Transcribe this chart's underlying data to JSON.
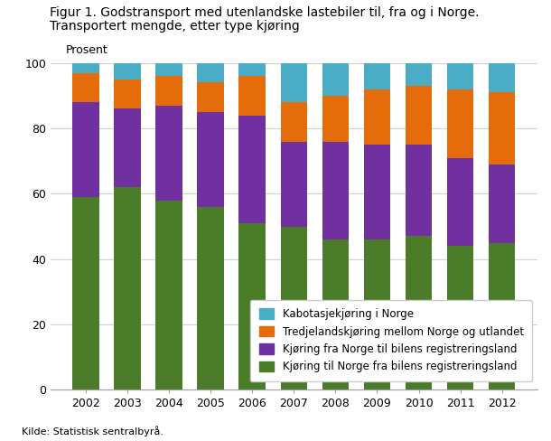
{
  "years": [
    2002,
    2003,
    2004,
    2005,
    2006,
    2007,
    2008,
    2009,
    2010,
    2011,
    2012
  ],
  "green": [
    59,
    62,
    58,
    56,
    51,
    50,
    46,
    46,
    47,
    44,
    45
  ],
  "purple": [
    29,
    24,
    29,
    29,
    33,
    26,
    30,
    29,
    28,
    27,
    24
  ],
  "orange": [
    9,
    9,
    9,
    9,
    12,
    12,
    14,
    17,
    18,
    21,
    22
  ],
  "blue": [
    3,
    5,
    4,
    6,
    4,
    12,
    10,
    8,
    7,
    8,
    9
  ],
  "colors": {
    "green": "#4a7c2a",
    "purple": "#7030a0",
    "orange": "#e46c0a",
    "blue": "#4bacc6"
  },
  "title_line1": "Figur 1. Godstransport med utenlandske lastebiler til, fra og i Norge.",
  "title_line2": "Transportert mengde, etter type kjøring",
  "ylabel": "Prosent",
  "source": "Kilde: Statistisk sentralbyrå.",
  "legend_labels": [
    "Kabotasjekjøring i Norge",
    "Tredjelandskjøring mellom Norge og utlandet",
    "Kjøring fra Norge til bilens registreringsland",
    "Kjøring til Norge fra bilens registreringsland"
  ],
  "ylim": [
    0,
    100
  ],
  "yticks": [
    0,
    20,
    40,
    60,
    80,
    100
  ],
  "bar_width": 0.65,
  "bg_color": "#ffffff",
  "grid_color": "#d0d0d0",
  "title_fontsize": 10,
  "axis_fontsize": 9,
  "source_fontsize": 8,
  "legend_fontsize": 8.5
}
